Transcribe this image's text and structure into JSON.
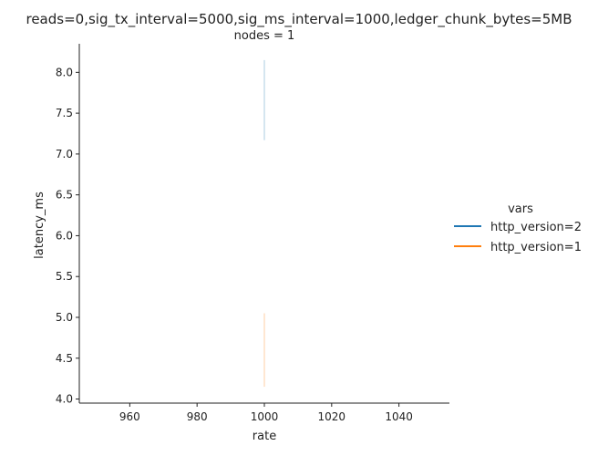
{
  "chart_data": {
    "type": "line",
    "title": "reads=0,sig_tx_interval=5000,sig_ms_interval=1000,ledger_chunk_bytes=5MB",
    "subtitle": "nodes = 1",
    "xlabel": "rate",
    "ylabel": "latency_ms",
    "xlim": [
      945,
      1055
    ],
    "ylim": [
      3.95,
      8.35
    ],
    "xticks": [
      960,
      980,
      1000,
      1020,
      1040
    ],
    "yticks": [
      4.0,
      4.5,
      5.0,
      5.5,
      6.0,
      6.5,
      7.0,
      7.5,
      8.0
    ],
    "grid": false,
    "legend_title": "vars",
    "legend_position": "right",
    "series": [
      {
        "name": "http_version=2",
        "color": "#1f77b4",
        "x": [
          1000,
          1000
        ],
        "y": [
          7.17,
          8.15
        ]
      },
      {
        "name": "http_version=1",
        "color": "#ff7f0e",
        "x": [
          1000,
          1000
        ],
        "y": [
          4.15,
          5.05
        ]
      }
    ]
  }
}
